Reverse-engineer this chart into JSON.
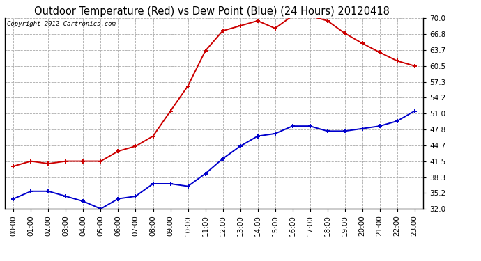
{
  "title": "Outdoor Temperature (Red) vs Dew Point (Blue) (24 Hours) 20120418",
  "copyright_text": "Copyright 2012 Cartronics.com",
  "hours": [
    "00:00",
    "01:00",
    "02:00",
    "03:00",
    "04:00",
    "05:00",
    "06:00",
    "07:00",
    "08:00",
    "09:00",
    "10:00",
    "11:00",
    "12:00",
    "13:00",
    "14:00",
    "15:00",
    "16:00",
    "17:00",
    "18:00",
    "19:00",
    "20:00",
    "21:00",
    "22:00",
    "23:00"
  ],
  "temp_red": [
    40.5,
    41.5,
    41.0,
    41.5,
    41.5,
    41.5,
    43.5,
    44.5,
    46.5,
    51.5,
    56.5,
    63.5,
    67.5,
    68.5,
    69.5,
    68.0,
    70.5,
    70.5,
    69.5,
    67.0,
    65.0,
    63.2,
    61.5,
    60.5
  ],
  "dew_blue": [
    34.0,
    35.5,
    35.5,
    34.5,
    33.5,
    32.0,
    34.0,
    34.5,
    37.0,
    37.0,
    36.5,
    39.0,
    42.0,
    44.5,
    46.5,
    47.0,
    48.5,
    48.5,
    47.5,
    47.5,
    48.0,
    48.5,
    49.5,
    51.5
  ],
  "ylim_min": 32.0,
  "ylim_max": 70.0,
  "yticks": [
    32.0,
    35.2,
    38.3,
    41.5,
    44.7,
    47.8,
    51.0,
    54.2,
    57.3,
    60.5,
    63.7,
    66.8,
    70.0
  ],
  "bg_color": "#ffffff",
  "plot_bg_color": "#ffffff",
  "grid_color": "#aaaaaa",
  "red_color": "#cc0000",
  "blue_color": "#0000cc",
  "title_fontsize": 10.5,
  "copyright_fontsize": 6.5,
  "tick_fontsize": 7.5,
  "marker_size": 5,
  "line_width": 1.4
}
